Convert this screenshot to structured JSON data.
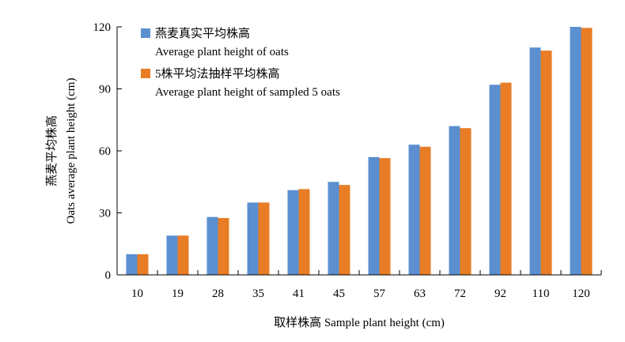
{
  "chart_data": {
    "type": "bar",
    "categories": [
      "10",
      "19",
      "28",
      "35",
      "41",
      "45",
      "57",
      "63",
      "72",
      "92",
      "110",
      "120"
    ],
    "series": [
      {
        "name_cn": "燕麦真实平均株高",
        "name_en": "Average plant height of oats",
        "color": "#5b8fd0",
        "values": [
          10,
          19,
          28,
          35,
          41,
          45,
          57,
          63,
          72,
          92,
          110,
          120
        ]
      },
      {
        "name_cn": "5株平均法抽样平均株高",
        "name_en": "Average plant height of sampled 5 oats",
        "color": "#e87d25",
        "values": [
          10,
          19,
          27.5,
          35,
          41.5,
          43.5,
          56.5,
          62,
          71,
          93,
          108.5,
          119.5
        ]
      }
    ],
    "yticks": [
      "0",
      "30",
      "60",
      "90",
      "120"
    ],
    "ylim": [
      0,
      120
    ],
    "xlabel": "取样株高 Sample plant height (cm)",
    "ylabel_cn": "燕麦平均株高",
    "ylabel_en": "Oats average plant height (cm)",
    "legend_position": "top-left",
    "grid": false
  }
}
